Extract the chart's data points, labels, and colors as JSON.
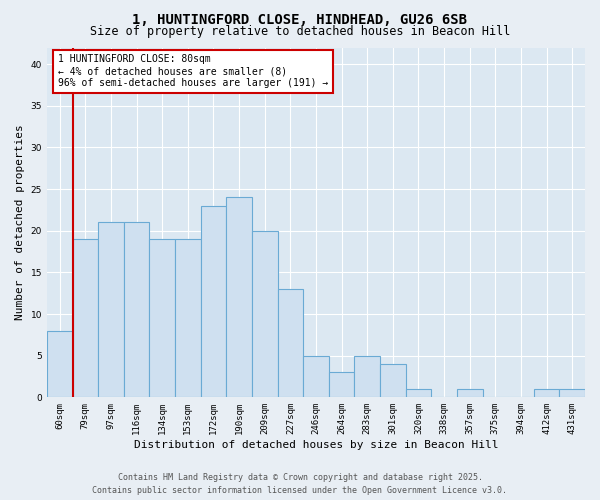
{
  "title_line1": "1, HUNTINGFORD CLOSE, HINDHEAD, GU26 6SB",
  "title_line2": "Size of property relative to detached houses in Beacon Hill",
  "xlabel": "Distribution of detached houses by size in Beacon Hill",
  "ylabel": "Number of detached properties",
  "bar_labels": [
    "60sqm",
    "79sqm",
    "97sqm",
    "116sqm",
    "134sqm",
    "153sqm",
    "172sqm",
    "190sqm",
    "209sqm",
    "227sqm",
    "246sqm",
    "264sqm",
    "283sqm",
    "301sqm",
    "320sqm",
    "338sqm",
    "357sqm",
    "375sqm",
    "394sqm",
    "412sqm",
    "431sqm"
  ],
  "bar_values": [
    8,
    19,
    21,
    21,
    19,
    19,
    23,
    24,
    20,
    13,
    5,
    3,
    5,
    4,
    1,
    0,
    1,
    0,
    0,
    1,
    1
  ],
  "bar_color": "#cfe0f0",
  "bar_edge_color": "#6aaad4",
  "red_line_index": 1,
  "annotation_text": "1 HUNTINGFORD CLOSE: 80sqm\n← 4% of detached houses are smaller (8)\n96% of semi-detached houses are larger (191) →",
  "annotation_box_color": "#ffffff",
  "annotation_box_edge_color": "#cc0000",
  "ylim": [
    0,
    42
  ],
  "yticks": [
    0,
    5,
    10,
    15,
    20,
    25,
    30,
    35,
    40
  ],
  "footer_line1": "Contains HM Land Registry data © Crown copyright and database right 2025.",
  "footer_line2": "Contains public sector information licensed under the Open Government Licence v3.0.",
  "bg_color": "#e8eef4",
  "plot_bg_color": "#dce8f2",
  "grid_color": "#ffffff",
  "red_line_color": "#cc0000",
  "title_fontsize": 10,
  "subtitle_fontsize": 8.5,
  "axis_label_fontsize": 8,
  "tick_fontsize": 6.5,
  "annotation_fontsize": 7,
  "footer_fontsize": 6
}
